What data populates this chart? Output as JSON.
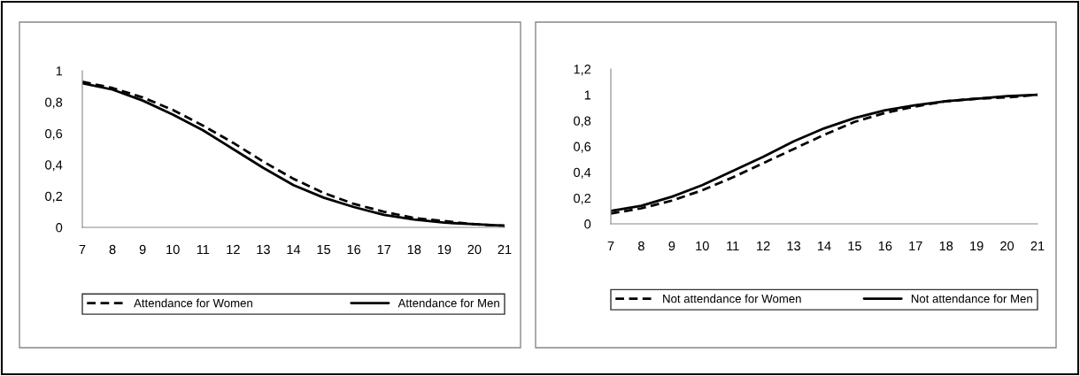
{
  "chart_data": [
    {
      "type": "line",
      "categories": [
        "7",
        "8",
        "9",
        "10",
        "11",
        "12",
        "13",
        "14",
        "15",
        "16",
        "17",
        "18",
        "19",
        "20",
        "21"
      ],
      "series": [
        {
          "name": "Attendance for Women",
          "color": "#000000",
          "line_style": "dashed",
          "values": [
            0.93,
            0.89,
            0.83,
            0.75,
            0.65,
            0.54,
            0.42,
            0.31,
            0.22,
            0.15,
            0.1,
            0.06,
            0.04,
            0.02,
            0.01
          ]
        },
        {
          "name": "Attendance for Men",
          "color": "#000000",
          "line_style": "solid",
          "values": [
            0.92,
            0.88,
            0.81,
            0.72,
            0.62,
            0.5,
            0.38,
            0.27,
            0.19,
            0.13,
            0.08,
            0.05,
            0.03,
            0.02,
            0.01
          ]
        }
      ],
      "ylim": [
        0,
        1
      ],
      "yticks": [
        0,
        {
          "value": 0.2,
          "label": "0,2"
        },
        {
          "value": 0.4,
          "label": "0,4"
        },
        {
          "value": 0.6,
          "label": "0,6"
        },
        {
          "value": 0.8,
          "label": "0,8"
        },
        1
      ],
      "grid": false,
      "legend": "bottom"
    },
    {
      "type": "line",
      "categories": [
        "7",
        "8",
        "9",
        "10",
        "11",
        "12",
        "13",
        "14",
        "15",
        "16",
        "17",
        "18",
        "19",
        "20",
        "21"
      ],
      "series": [
        {
          "name": "Not attendance for Women",
          "color": "#000000",
          "line_style": "dashed",
          "values": [
            0.08,
            0.12,
            0.18,
            0.26,
            0.36,
            0.47,
            0.58,
            0.69,
            0.79,
            0.86,
            0.91,
            0.95,
            0.97,
            0.98,
            1.0
          ]
        },
        {
          "name": "Not attendance for Men",
          "color": "#000000",
          "line_style": "solid",
          "values": [
            0.1,
            0.14,
            0.21,
            0.3,
            0.41,
            0.52,
            0.64,
            0.74,
            0.82,
            0.88,
            0.92,
            0.95,
            0.97,
            0.99,
            1.0
          ]
        }
      ],
      "ylim": [
        0,
        1.2
      ],
      "yticks": [
        0,
        {
          "value": 0.2,
          "label": "0,2"
        },
        {
          "value": 0.4,
          "label": "0,4"
        },
        {
          "value": 0.6,
          "label": "0,6"
        },
        {
          "value": 0.8,
          "label": "0,8"
        },
        1,
        {
          "value": 1.2,
          "label": "1,2"
        }
      ],
      "grid": false,
      "legend": "bottom"
    }
  ]
}
